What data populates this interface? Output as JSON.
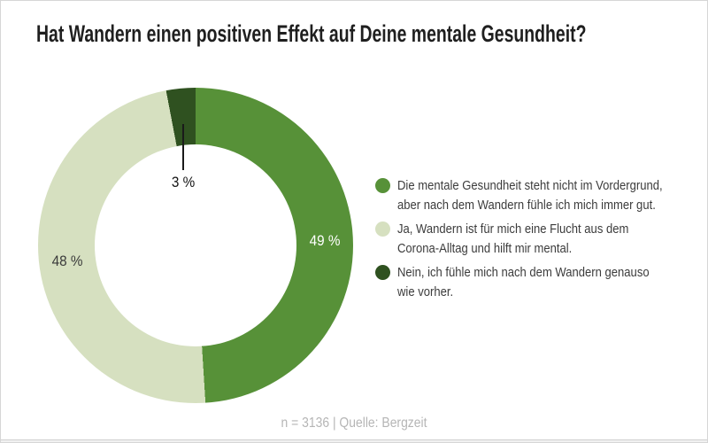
{
  "title": "Hat Wandern einen positiven Effekt auf Deine mentale Gesundheit?",
  "chart_data": {
    "type": "pie",
    "subtype": "donut",
    "title": "Hat Wandern einen positiven Effekt auf Deine mentale Gesundheit?",
    "categories": [
      "Die mentale Gesundheit steht nicht im Vordergrund, aber nach dem Wandern fühle ich mich immer gut.",
      "Ja, Wandern ist für mich eine Flucht aus dem Corona-Alltag und hilft mir mental.",
      "Nein, ich fühle mich nach dem Wandern genauso wie vorher."
    ],
    "values": [
      49,
      48,
      3
    ],
    "value_labels": [
      "49 %",
      "48 %",
      "3 %"
    ],
    "colors": [
      "#579138",
      "#d6e0c0",
      "#2f5120"
    ],
    "start_angle": "top, clockwise",
    "inner_radius_ratio": 0.64,
    "legend_position": "right",
    "footnote": "n = 3136 | Quelle: Bergzeit"
  },
  "legend": {
    "items": [
      {
        "line1": "Die mentale Gesundheit steht nicht im Vordergrund,",
        "line2": "aber nach dem Wandern fühle ich mich immer gut.",
        "color": "#579138"
      },
      {
        "line1": "Ja, Wandern ist für mich eine Flucht aus dem",
        "line2": "Corona-Alltag und hilft mir mental.",
        "color": "#d6e0c0"
      },
      {
        "line1": "Nein, ich fühle mich nach dem Wandern genauso",
        "line2": "wie vorher.",
        "color": "#2f5120"
      }
    ]
  },
  "footer": {
    "source_note": "n = 3136 | Quelle: Bergzeit"
  }
}
